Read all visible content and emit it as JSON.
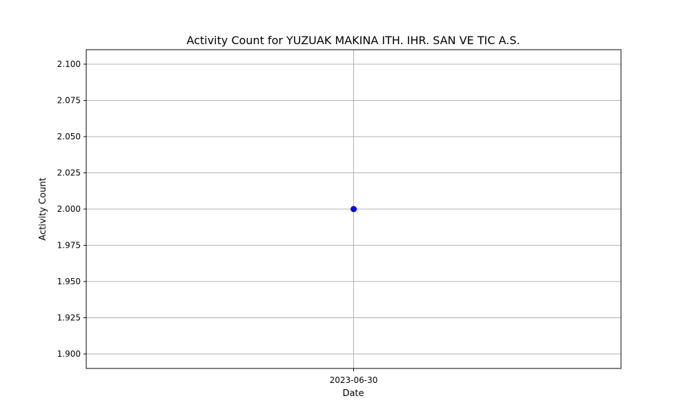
{
  "chart_data": {
    "type": "scatter",
    "title": "Activity Count for YUZUAK MAKINA ITH. IHR. SAN VE TIC A.S.",
    "xlabel": "Date",
    "ylabel": "Activity Count",
    "x": [
      "2023-06-30"
    ],
    "series": [
      {
        "values": [
          2.0
        ],
        "color": "#0000ff"
      }
    ],
    "ylim": [
      1.89,
      2.11
    ],
    "yticks": [
      1.9,
      1.925,
      1.95,
      1.975,
      2.0,
      2.025,
      2.05,
      2.075,
      2.1
    ],
    "ytick_labels": [
      "1.900",
      "1.925",
      "1.950",
      "1.975",
      "2.000",
      "2.025",
      "2.050",
      "2.075",
      "2.100"
    ],
    "xtick_labels": [
      "2023-06-30"
    ],
    "grid": true
  }
}
